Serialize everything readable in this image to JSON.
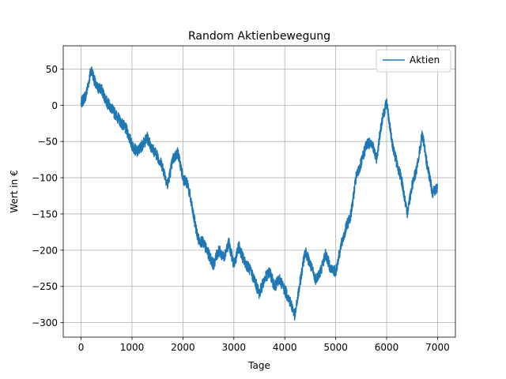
{
  "chart_data": {
    "type": "line",
    "title": "Random Aktienbewegung",
    "xlabel": "Tage",
    "ylabel": "Wert in €",
    "xlim": [
      -350,
      7350
    ],
    "ylim": [
      -320,
      82
    ],
    "grid": true,
    "legend_position": "top-right",
    "x_ticks": [
      0,
      1000,
      2000,
      3000,
      4000,
      5000,
      6000,
      7000
    ],
    "x_tick_labels": [
      "0",
      "1000",
      "2000",
      "3000",
      "4000",
      "5000",
      "6000",
      "7000"
    ],
    "y_ticks": [
      50,
      0,
      -50,
      -100,
      -150,
      -200,
      -250,
      -300
    ],
    "y_tick_labels": [
      "50",
      "0",
      "−50",
      "−100",
      "−150",
      "−200",
      "−250",
      "−300"
    ],
    "series": [
      {
        "name": "Aktien",
        "color": "#1f77b4",
        "noise_amplitude": 8,
        "x": [
          0,
          100,
          200,
          300,
          400,
          500,
          600,
          700,
          800,
          900,
          1000,
          1100,
          1200,
          1300,
          1400,
          1500,
          1600,
          1700,
          1800,
          1900,
          2000,
          2100,
          2200,
          2300,
          2400,
          2500,
          2600,
          2700,
          2800,
          2900,
          3000,
          3100,
          3200,
          3300,
          3400,
          3500,
          3600,
          3700,
          3800,
          3900,
          4000,
          4100,
          4200,
          4300,
          4400,
          4500,
          4600,
          4700,
          4800,
          4900,
          5000,
          5100,
          5200,
          5300,
          5400,
          5500,
          5600,
          5700,
          5800,
          5900,
          6000,
          6100,
          6200,
          6300,
          6400,
          6500,
          6600,
          6700,
          6800,
          6900,
          7000
        ],
        "y": [
          2,
          15,
          50,
          25,
          22,
          5,
          -5,
          -15,
          -25,
          -35,
          -55,
          -65,
          -55,
          -45,
          -60,
          -70,
          -85,
          -110,
          -75,
          -65,
          -100,
          -110,
          -150,
          -185,
          -190,
          -205,
          -220,
          -200,
          -210,
          -190,
          -220,
          -195,
          -215,
          -225,
          -240,
          -260,
          -240,
          -230,
          -250,
          -240,
          -255,
          -270,
          -290,
          -245,
          -200,
          -220,
          -240,
          -230,
          -205,
          -225,
          -230,
          -195,
          -170,
          -150,
          -100,
          -80,
          -55,
          -50,
          -75,
          -25,
          5,
          -50,
          -80,
          -105,
          -150,
          -110,
          -85,
          -40,
          -85,
          -120,
          -115
        ]
      }
    ]
  }
}
